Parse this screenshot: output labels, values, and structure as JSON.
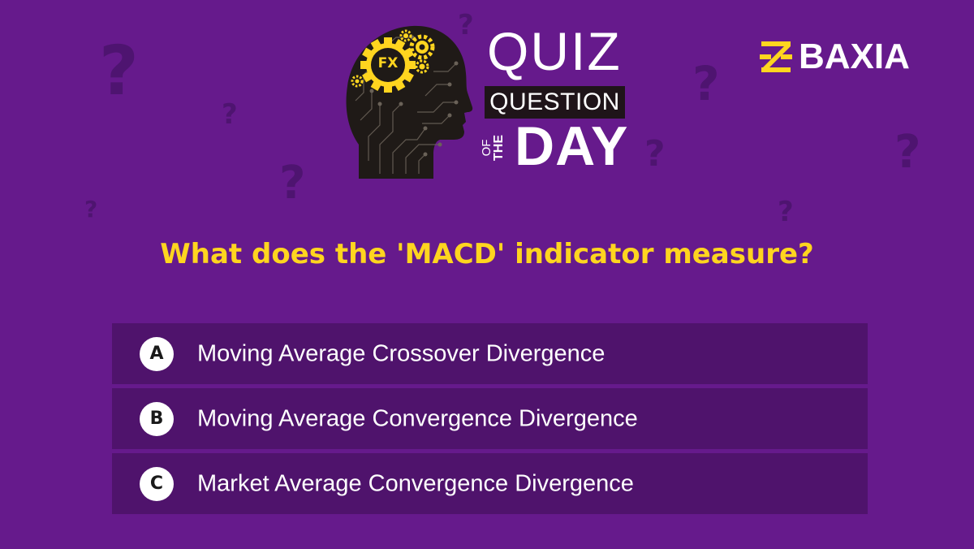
{
  "colors": {
    "background": "#661a8c",
    "option_background": "#4f136c",
    "question_text": "#ffd51f",
    "brand_yellow": "#ffd51f",
    "question_mark_decor": "#4e1470",
    "title_bar": "#1f1419"
  },
  "header": {
    "graphic_icon": "head-with-gears-icon",
    "fx_label": "FX",
    "title_quiz": "QUIZ",
    "title_question": "QUESTION",
    "title_of": "OF",
    "title_the": "THE",
    "title_day": "DAY"
  },
  "brand": {
    "icon": "baxia-logo-icon",
    "name": "BAXIA"
  },
  "question": {
    "text": "What does the 'MACD' indicator measure?"
  },
  "options": [
    {
      "letter": "A",
      "text": "Moving Average Crossover Divergence"
    },
    {
      "letter": "B",
      "text": "Moving Average Convergence Divergence"
    },
    {
      "letter": "C",
      "text": "Market Average Convergence Divergence"
    }
  ],
  "decorations": {
    "icon": "question-mark-icon",
    "glyph": "?"
  }
}
